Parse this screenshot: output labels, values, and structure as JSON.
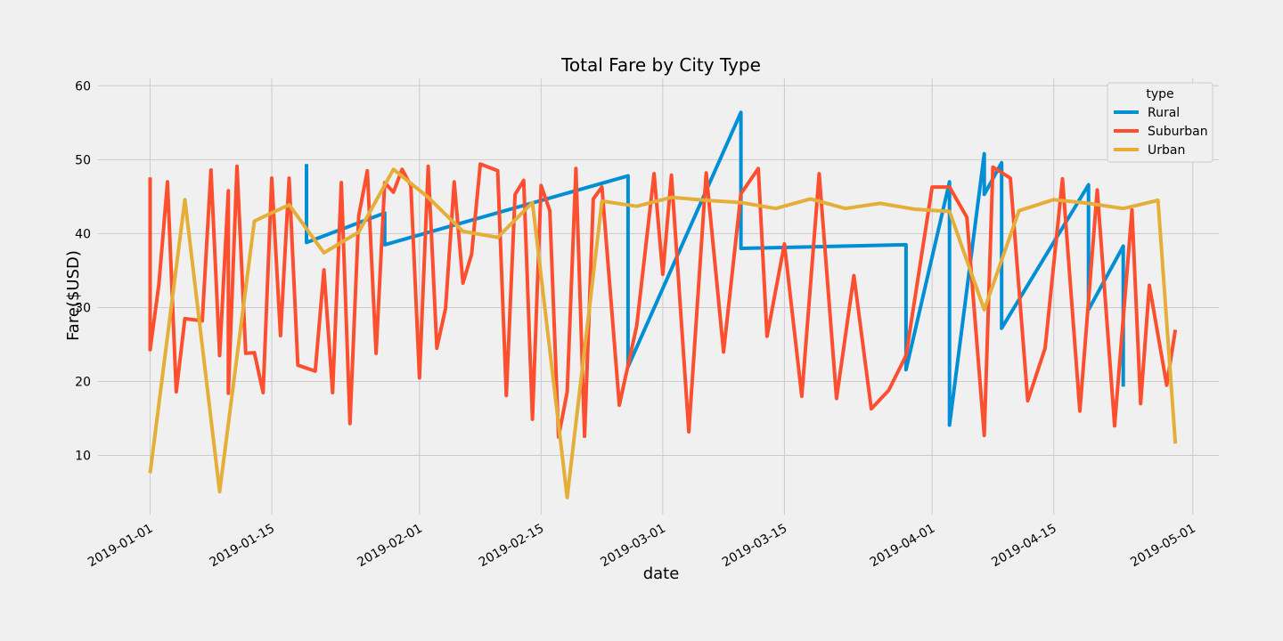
{
  "chart_data": {
    "type": "line",
    "title": "Total Fare by City Type",
    "xlabel": "date",
    "ylabel": "Fare($USD)",
    "xlim": [
      "2018-12-26",
      "2019-05-04"
    ],
    "ylim": [
      2,
      61
    ],
    "x_ticks": [
      "2019-01-01",
      "2019-01-15",
      "2019-02-01",
      "2019-02-15",
      "2019-03-01",
      "2019-03-15",
      "2019-04-01",
      "2019-04-15",
      "2019-05-01"
    ],
    "y_ticks": [
      10,
      20,
      30,
      40,
      50,
      60
    ],
    "grid": true,
    "legend": {
      "title": "type",
      "placement": "top-right"
    },
    "series": [
      {
        "name": "Rural",
        "color": "#008fd5",
        "x": [
          "2019-01-19",
          "2019-01-19",
          "2019-01-28",
          "2019-01-28",
          "2019-02-25",
          "2019-02-25",
          "2019-03-10",
          "2019-03-10",
          "2019-03-29",
          "2019-03-29",
          "2019-04-03",
          "2019-04-03",
          "2019-04-07",
          "2019-04-07",
          "2019-04-09",
          "2019-04-09",
          "2019-04-19",
          "2019-04-19",
          "2019-04-23",
          "2019-04-23"
        ],
        "y": [
          49.4,
          38.8,
          42.8,
          38.5,
          47.8,
          22.0,
          56.4,
          38.0,
          38.5,
          21.6,
          47.0,
          14.1,
          50.8,
          45.3,
          49.6,
          27.2,
          46.6,
          29.7,
          38.3,
          19.3
        ]
      },
      {
        "name": "Suburban",
        "color": "#fc4f30",
        "x": [
          "2019-01-01",
          "2019-01-01",
          "2019-01-02",
          "2019-01-03",
          "2019-01-04",
          "2019-01-05",
          "2019-01-07",
          "2019-01-08",
          "2019-01-09",
          "2019-01-10",
          "2019-01-10",
          "2019-01-11",
          "2019-01-12",
          "2019-01-13",
          "2019-01-14",
          "2019-01-15",
          "2019-01-16",
          "2019-01-17",
          "2019-01-18",
          "2019-01-20",
          "2019-01-21",
          "2019-01-22",
          "2019-01-23",
          "2019-01-24",
          "2019-01-25",
          "2019-01-26",
          "2019-01-27",
          "2019-01-28",
          "2019-01-29",
          "2019-01-30",
          "2019-01-31",
          "2019-02-01",
          "2019-02-02",
          "2019-02-03",
          "2019-02-04",
          "2019-02-05",
          "2019-02-06",
          "2019-02-07",
          "2019-02-08",
          "2019-02-10",
          "2019-02-11",
          "2019-02-12",
          "2019-02-13",
          "2019-02-14",
          "2019-02-15",
          "2019-02-16",
          "2019-02-17",
          "2019-02-18",
          "2019-02-19",
          "2019-02-20",
          "2019-02-21",
          "2019-02-22",
          "2019-02-24",
          "2019-02-26",
          "2019-02-28",
          "2019-03-01",
          "2019-03-02",
          "2019-03-04",
          "2019-03-06",
          "2019-03-08",
          "2019-03-10",
          "2019-03-12",
          "2019-03-13",
          "2019-03-15",
          "2019-03-17",
          "2019-03-19",
          "2019-03-21",
          "2019-03-23",
          "2019-03-25",
          "2019-03-27",
          "2019-03-29",
          "2019-04-01",
          "2019-04-03",
          "2019-04-05",
          "2019-04-07",
          "2019-04-08",
          "2019-04-10",
          "2019-04-12",
          "2019-04-14",
          "2019-04-16",
          "2019-04-18",
          "2019-04-20",
          "2019-04-22",
          "2019-04-24",
          "2019-04-25",
          "2019-04-26",
          "2019-04-28",
          "2019-04-29"
        ],
        "y": [
          47.6,
          24.3,
          33.1,
          47.0,
          18.6,
          28.5,
          28.2,
          48.6,
          23.5,
          45.8,
          18.4,
          49.1,
          23.8,
          23.9,
          18.5,
          47.5,
          26.2,
          47.5,
          22.2,
          21.4,
          35.1,
          18.5,
          46.9,
          14.3,
          42.4,
          48.5,
          23.8,
          46.9,
          45.6,
          48.7,
          46.5,
          20.5,
          49.1,
          24.5,
          29.9,
          47.0,
          33.3,
          37.2,
          49.4,
          48.5,
          18.1,
          45.3,
          47.2,
          14.9,
          46.5,
          43.1,
          12.5,
          18.6,
          48.8,
          12.6,
          44.7,
          46.3,
          16.8,
          27.5,
          48.1,
          34.5,
          47.9,
          13.2,
          48.2,
          24.0,
          45.4,
          48.8,
          26.1,
          38.6,
          18.0,
          48.1,
          17.7,
          34.3,
          16.3,
          18.8,
          23.5,
          46.3,
          46.3,
          42.2,
          12.7,
          49.0,
          47.5,
          17.4,
          24.5,
          47.4,
          16.0,
          45.9,
          14.0,
          43.2,
          17.0,
          33.0,
          19.5,
          27.0
        ]
      },
      {
        "name": "Urban",
        "color": "#e5ae38",
        "x": [
          "2019-01-01",
          "2019-01-05",
          "2019-01-09",
          "2019-01-13",
          "2019-01-17",
          "2019-01-21",
          "2019-01-25",
          "2019-01-29",
          "2019-02-02",
          "2019-02-06",
          "2019-02-10",
          "2019-02-14",
          "2019-02-18",
          "2019-02-22",
          "2019-02-26",
          "2019-03-02",
          "2019-03-06",
          "2019-03-10",
          "2019-03-14",
          "2019-03-18",
          "2019-03-22",
          "2019-03-26",
          "2019-03-30",
          "2019-04-03",
          "2019-04-07",
          "2019-04-11",
          "2019-04-15",
          "2019-04-19",
          "2019-04-23",
          "2019-04-27",
          "2019-04-29"
        ],
        "y": [
          7.6,
          44.6,
          5.1,
          41.7,
          43.9,
          37.4,
          40.2,
          48.7,
          44.9,
          40.3,
          39.5,
          44.2,
          4.3,
          44.4,
          43.7,
          44.9,
          44.5,
          44.2,
          43.4,
          44.7,
          43.4,
          44.1,
          43.3,
          43.0,
          29.7,
          43.1,
          44.6,
          44.1,
          43.4,
          44.5,
          11.6
        ]
      }
    ]
  }
}
